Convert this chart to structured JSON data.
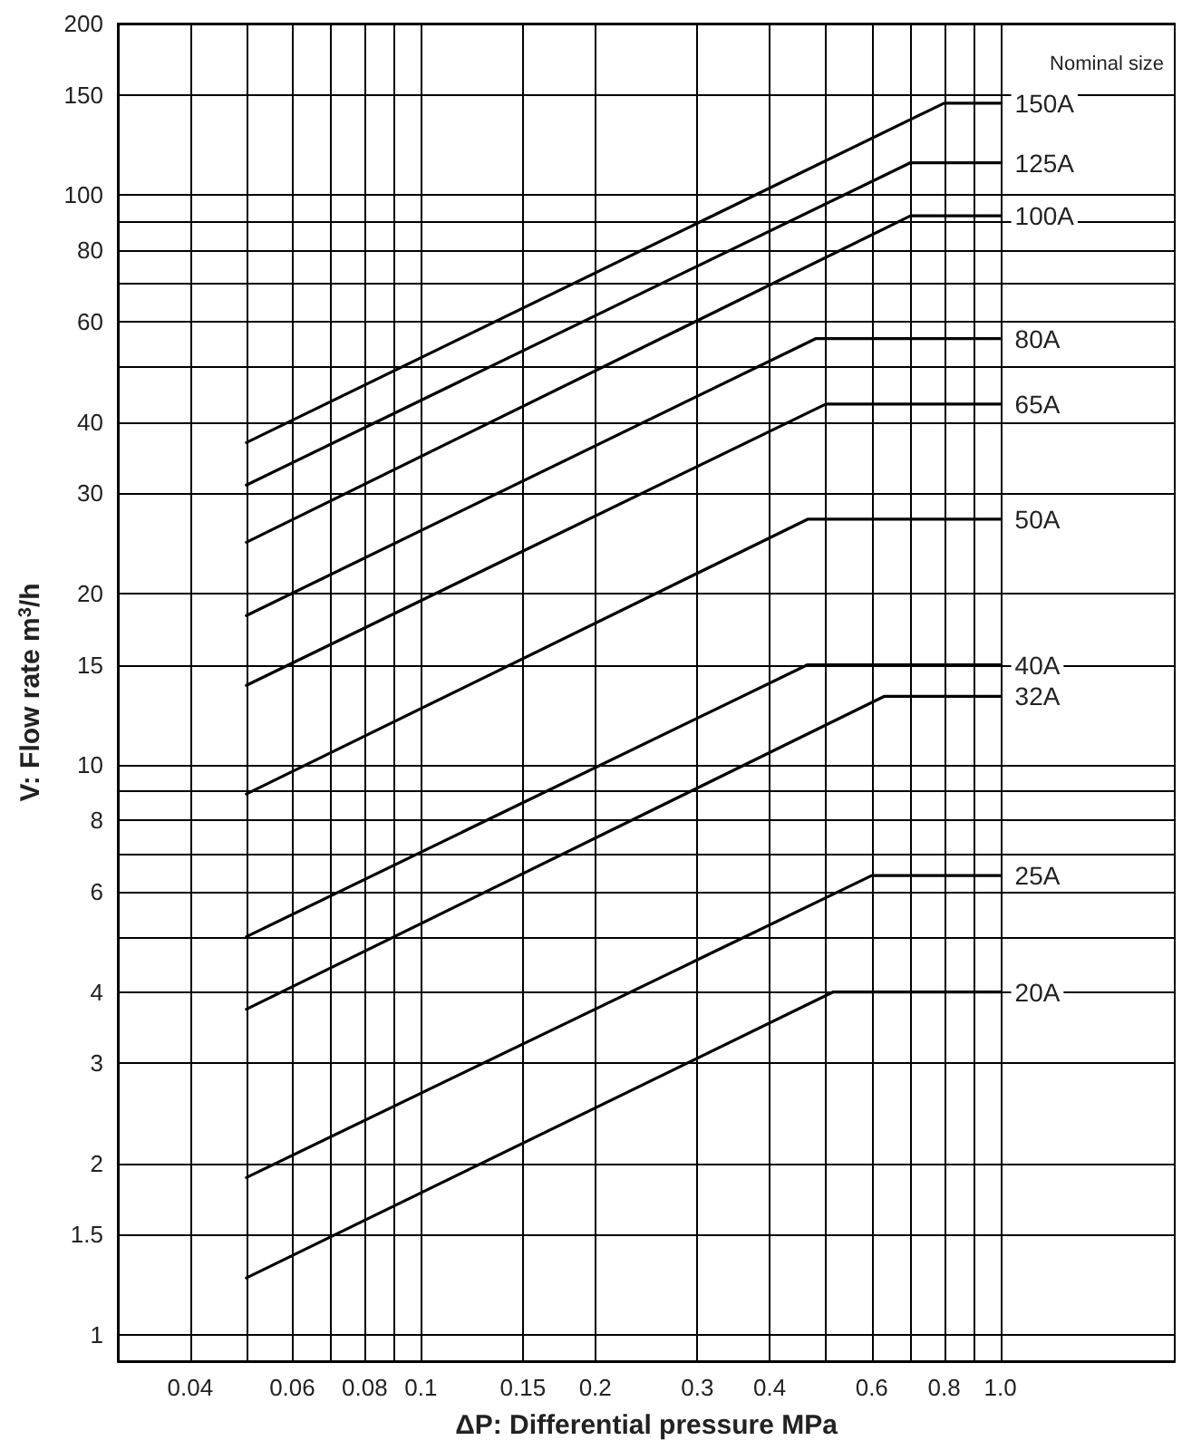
{
  "chart_data": {
    "type": "line",
    "xlabel": "ΔP: Differential pressure MPa",
    "ylabel": "V: Flow rate m$^{3}$/h",
    "legend_title": "Nominal size",
    "log": "xy",
    "grid": true,
    "marker": "none",
    "xlim": [
      0.03,
      2
    ],
    "ylim": [
      0.9,
      200
    ],
    "xticks": [
      0.04,
      {
        "value": 0.05,
        "label": null
      },
      0.06,
      {
        "value": 0.07,
        "label": null
      },
      0.08,
      {
        "value": 0.09,
        "label": null
      },
      0.1,
      0.15,
      0.2,
      0.3,
      0.4,
      {
        "value": 0.5,
        "label": null
      },
      0.6,
      {
        "value": 0.7,
        "label": null
      },
      0.8,
      {
        "value": 0.9,
        "label": null
      },
      {
        "value": 1,
        "label": "1.0"
      }
    ],
    "yticks": [
      1,
      1.5,
      2,
      3,
      4,
      {
        "value": 5,
        "label": null
      },
      6,
      {
        "value": 7,
        "label": null
      },
      8,
      {
        "value": 9,
        "label": null
      },
      10,
      15,
      20,
      30,
      40,
      {
        "value": 50,
        "label": null
      },
      60,
      {
        "value": 70,
        "label": null
      },
      80,
      {
        "value": 90,
        "label": null
      },
      100,
      150,
      200
    ],
    "series": [
      {
        "name": "150A",
        "color": "#000000",
        "x": [
          0.05,
          0.8,
          1
        ],
        "values": [
          36.8,
          145,
          145
        ]
      },
      {
        "name": "125A",
        "color": "#000000",
        "x": [
          0.05,
          0.7,
          1
        ],
        "values": [
          31,
          114,
          114
        ]
      },
      {
        "name": "100A",
        "color": "#000000",
        "x": [
          0.05,
          0.7,
          1
        ],
        "values": [
          24.6,
          92,
          92
        ]
      },
      {
        "name": "80A",
        "color": "#000000",
        "x": [
          0.05,
          0.48,
          1
        ],
        "values": [
          18.3,
          56,
          56
        ]
      },
      {
        "name": "65A",
        "color": "#000000",
        "x": [
          0.05,
          0.5,
          1
        ],
        "values": [
          13.8,
          43,
          43
        ]
      },
      {
        "name": "50A",
        "color": "#000000",
        "x": [
          0.05,
          0.465,
          1
        ],
        "values": [
          8.9,
          27,
          27
        ]
      },
      {
        "name": "40A",
        "color": "#000000",
        "x": [
          0.05,
          0.465,
          1
        ],
        "values": [
          5,
          15,
          15
        ]
      },
      {
        "name": "32A",
        "color": "#000000",
        "x": [
          0.05,
          0.63,
          1
        ],
        "values": [
          3.73,
          13.2,
          13.2
        ]
      },
      {
        "name": "25A",
        "color": "#000000",
        "x": [
          0.05,
          0.6,
          1
        ],
        "values": [
          1.89,
          6.4,
          6.4
        ]
      },
      {
        "name": "20A",
        "color": "#000000",
        "x": [
          0.05,
          0.515,
          1
        ],
        "values": [
          1.26,
          4,
          4
        ]
      }
    ]
  }
}
